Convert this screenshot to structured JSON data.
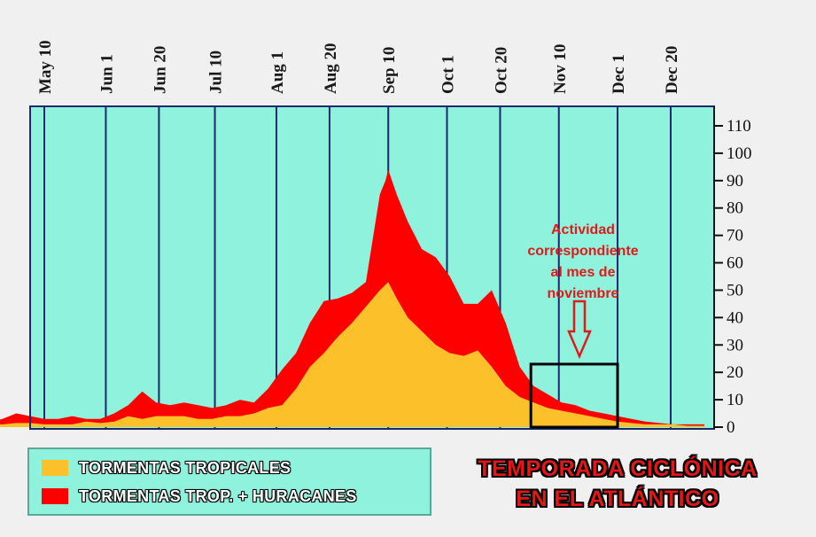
{
  "chart_data": {
    "type": "area",
    "title": "TEMPORADA CICLÓNICA EN EL ATLÁNTICO",
    "title_lines": [
      "TEMPORADA CICLÓNICA",
      "EN EL ATLÁNTICO"
    ],
    "x_tick_labels": [
      "May 10",
      "Jun 1",
      "Jun 20",
      "Jul 10",
      "Aug 1",
      "Aug 20",
      "Sep 10",
      "Oct 1",
      "Oct 20",
      "Nov 10",
      "Dec 1",
      "Dec 20"
    ],
    "x_tick_days": [
      130,
      152,
      171,
      191,
      213,
      232,
      253,
      274,
      293,
      314,
      335,
      354
    ],
    "xlim": [
      101,
      366
    ],
    "y_tick_labels": [
      "0",
      "10",
      "20",
      "30",
      "40",
      "50",
      "60",
      "70",
      "80",
      "90",
      "100",
      "110"
    ],
    "ylim": [
      0,
      115
    ],
    "grid": "vertical",
    "colors": {
      "plot_bg": "#8ef2dc",
      "tropical_storms": "#fcc12a",
      "storms_plus_hurricanes": "#ff0000",
      "grid": "#1a2a6a",
      "annotation": "#e01b1b"
    },
    "series": [
      {
        "name": "TORMENTAS TROPICALES",
        "color": "#fcc12a",
        "x": [
          101,
          110,
          115,
          120,
          125,
          130,
          140,
          145,
          150,
          155,
          160,
          165,
          170,
          175,
          180,
          185,
          190,
          195,
          200,
          205,
          210,
          215,
          220,
          225,
          230,
          235,
          240,
          245,
          250,
          253,
          256,
          260,
          265,
          270,
          275,
          280,
          285,
          290,
          295,
          300,
          305,
          310,
          315,
          320,
          325,
          330,
          335,
          340,
          345,
          350,
          355,
          360,
          366
        ],
        "y": [
          0.5,
          1,
          1,
          1.5,
          1.5,
          1,
          1,
          2,
          1.5,
          2,
          4,
          3,
          4,
          4,
          4,
          3,
          3,
          4,
          4,
          5,
          7,
          8,
          14,
          22,
          27,
          33,
          38,
          44,
          50,
          53,
          47,
          40,
          35,
          30,
          27,
          26,
          28,
          22,
          15,
          11,
          9,
          7,
          6,
          5,
          4,
          3,
          2,
          1.5,
          1,
          1,
          1,
          0.5,
          0.5
        ]
      },
      {
        "name": "TORMENTAS TROP. + HURACANES",
        "color": "#ff0000",
        "x": [
          101,
          105,
          110,
          115,
          120,
          125,
          130,
          135,
          140,
          145,
          150,
          155,
          160,
          165,
          170,
          175,
          180,
          185,
          190,
          195,
          200,
          205,
          210,
          215,
          220,
          225,
          230,
          235,
          240,
          245,
          250,
          252,
          253,
          256,
          260,
          265,
          270,
          275,
          280,
          285,
          290,
          295,
          300,
          305,
          310,
          315,
          320,
          325,
          330,
          335,
          340,
          345,
          350,
          355,
          360,
          366
        ],
        "y": [
          1,
          2,
          1.5,
          3,
          5,
          4,
          3,
          3,
          4,
          3,
          3,
          5,
          8,
          13,
          9,
          8,
          9,
          8,
          7,
          8,
          10,
          9,
          14,
          21,
          27,
          38,
          46,
          47,
          49,
          53,
          85,
          90,
          94,
          85,
          75,
          65,
          62,
          55,
          45,
          45,
          50,
          38,
          22,
          15,
          12,
          9,
          8,
          6,
          5,
          4,
          3,
          2,
          1.5,
          1,
          1,
          1
        ]
      }
    ],
    "annotation": {
      "lines": [
        "Actividad",
        "correspondiente",
        "al mes de",
        "noviembre"
      ],
      "box_x_range": [
        304,
        335
      ],
      "box_y_range": [
        0,
        23
      ]
    }
  },
  "legend": {
    "items": [
      {
        "label": "TORMENTAS TROPICALES",
        "color": "#fcc12a"
      },
      {
        "label": "TORMENTAS TROP. + HURACANES",
        "color": "#ff0000"
      }
    ]
  }
}
